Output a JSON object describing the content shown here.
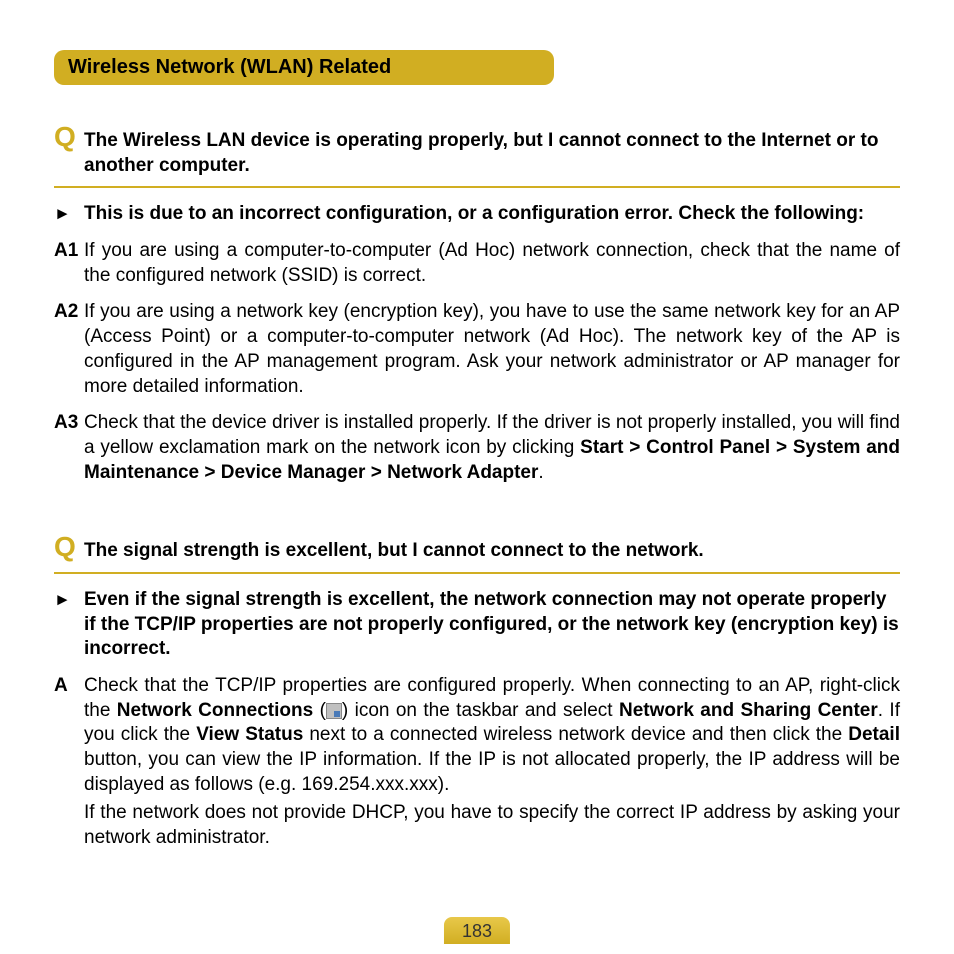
{
  "section_title": "Wireless Network (WLAN) Related",
  "q1": {
    "marker": "Q",
    "text": "The Wireless LAN device is operating properly, but I cannot connect to the Internet or to another computer.",
    "arrow": "►",
    "arrow_text": "This is due to an incorrect configuration, or a configuration error. Check the following:",
    "a1_marker": "A1",
    "a1_text": "If you are using a computer-to-computer (Ad Hoc) network connection, check that the name of the configured network (SSID) is correct.",
    "a2_marker": "A2",
    "a2_text": "If you are using a network key (encryption key), you have to use the same network key for an AP (Access Point) or a computer-to-computer network (Ad Hoc). The network key of the AP is configured in the AP management program. Ask your network administrator or AP manager for more detailed information.",
    "a3_marker": "A3",
    "a3_pre": "Check that the device driver is installed properly. If the driver is not properly installed, you will find a yellow exclamation mark on the network icon by clicking ",
    "a3_bold": "Start > Control Panel > System and Maintenance > Device Manager > Network Adapter",
    "a3_post": "."
  },
  "q2": {
    "marker": "Q",
    "text": "The signal strength is excellent, but I cannot connect to the network.",
    "arrow": "►",
    "arrow_text": "Even if the signal strength is excellent, the network connection may not operate properly if the TCP/IP properties are not properly configured, or the network key (encryption key) is incorrect.",
    "a_marker": "A",
    "p1_1": "Check that the TCP/IP properties are configured properly. When connecting to an AP, right-click the ",
    "p1_b1": "Network Connections",
    "p1_2": " (",
    "p1_3": ") icon on the taskbar and select ",
    "p1_b2": "Network and Sharing Center",
    "p1_4": ". If you click the ",
    "p1_b3": "View Status",
    "p1_5": " next to a connected wireless network device and then click the ",
    "p1_b4": "Detail",
    "p1_6": " button, you can view the IP information. If the IP is not allocated properly, the IP address will be displayed as follows (e.g. 169.254.xxx.xxx).",
    "p2": "If the network does not provide DHCP, you have to specify the correct IP address by asking your network administrator."
  },
  "page_number": "183",
  "colors": {
    "accent": "#d1ae22",
    "text": "#000000",
    "background": "#ffffff"
  }
}
